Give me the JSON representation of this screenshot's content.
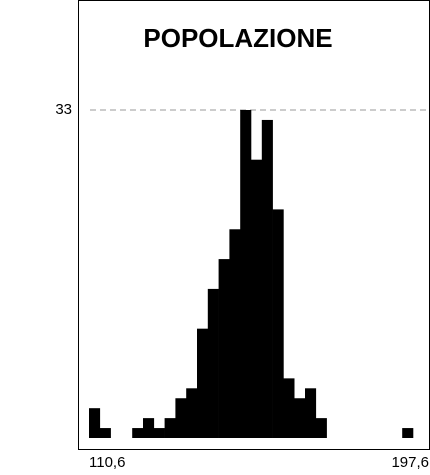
{
  "chart_data": {
    "type": "histogram",
    "title": "POPOLAZIONE",
    "bins": [
      110.6,
      113.5,
      116.4,
      119.3,
      122.2,
      125.1,
      128,
      130.9,
      133.8,
      136.7,
      139.6,
      142.5,
      145.4,
      148.3,
      151.2,
      154.1,
      157,
      159.9,
      162.8,
      165.7,
      168.6,
      171.5,
      174.4,
      177.3,
      180.2,
      183.1,
      186,
      188.9,
      191.8,
      194.7,
      197.6
    ],
    "values": [
      3,
      1,
      0,
      0,
      1,
      2,
      1,
      2,
      4,
      5,
      11,
      15,
      18,
      21,
      33,
      28,
      32,
      23,
      6,
      4,
      5,
      2,
      0,
      0,
      0,
      0,
      0,
      0,
      0,
      1
    ],
    "color": "#000000",
    "xlim": [
      110.6,
      197.6
    ],
    "xticks": [
      {
        "value": 110.6,
        "label": "110,6"
      },
      {
        "value": 197.6,
        "label": "197,6"
      }
    ],
    "ylim": [
      0,
      33
    ],
    "yticks": [
      33
    ],
    "grid": true
  }
}
